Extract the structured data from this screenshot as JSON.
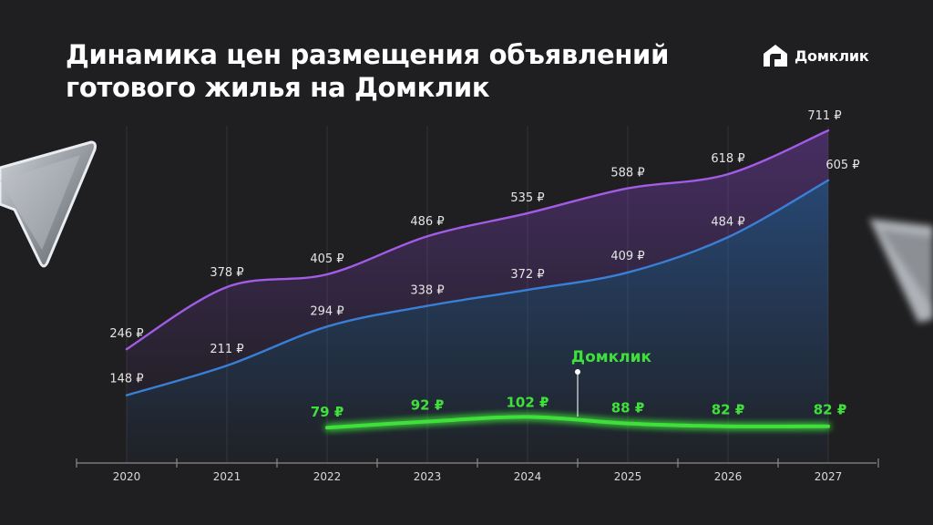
{
  "title": {
    "line1": "Динамика цен размещения объявлений",
    "line2": "готового жилья на Домклик"
  },
  "brand": {
    "name": "Домклик",
    "icon": "house-logo-icon"
  },
  "colors": {
    "background": "#1f1f21",
    "purple": "#a25ce6",
    "blue": "#3a7fd6",
    "green": "#3fe03a",
    "text": "#e4e4e4",
    "axis": "#8a8a8a"
  },
  "chart_data": {
    "type": "line",
    "title": "Динамика цен размещения объявлений готового жилья на Домклик",
    "x": [
      "2020",
      "2021",
      "2022",
      "2023",
      "2024",
      "2025",
      "2026",
      "2027"
    ],
    "ylim": [
      0,
      750
    ],
    "grid": "vertical",
    "unit": "₽",
    "series": [
      {
        "key": "purple",
        "color": "#a25ce6",
        "values": [
          246,
          378,
          405,
          486,
          535,
          588,
          618,
          711
        ],
        "labels": [
          "246 ₽",
          "378 ₽",
          "405 ₽",
          "486 ₽",
          "535 ₽",
          "588 ₽",
          "618 ₽",
          "711 ₽"
        ]
      },
      {
        "key": "blue",
        "color": "#3a7fd6",
        "values": [
          148,
          211,
          294,
          338,
          372,
          409,
          484,
          605
        ],
        "labels": [
          "148 ₽",
          "211 ₽",
          "294 ₽",
          "338 ₽",
          "372 ₽",
          "409 ₽",
          "484 ₽",
          "605 ₽"
        ]
      },
      {
        "key": "green",
        "name": "Домклик",
        "color": "#3fe03a",
        "values": [
          null,
          null,
          79,
          92,
          102,
          88,
          82,
          82
        ],
        "labels": [
          "",
          "",
          "79 ₽",
          "92 ₽",
          "102 ₽",
          "88 ₽",
          "82 ₽",
          "82 ₽"
        ]
      }
    ],
    "annotation": {
      "text": "Домклик",
      "series": "green",
      "at": 4.5
    }
  }
}
